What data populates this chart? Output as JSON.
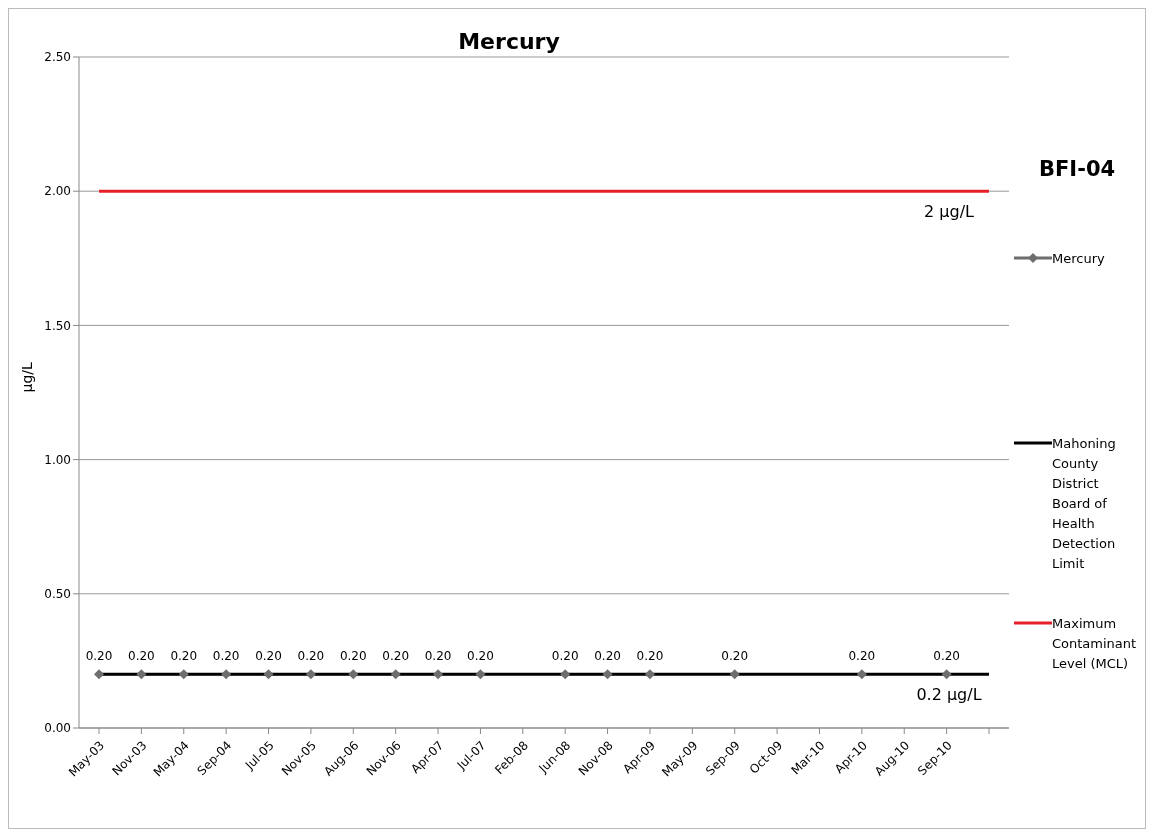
{
  "chart_data": {
    "type": "line",
    "title": "Mercury",
    "subtitle": "BFI-04",
    "ylabel": "µg/L",
    "categories": [
      "May-03",
      "Nov-03",
      "May-04",
      "Sep-04",
      "Jul-05",
      "Nov-05",
      "Aug-06",
      "Nov-06",
      "Apr-07",
      "Jul-07",
      "Feb-08",
      "Jun-08",
      "Nov-08",
      "Apr-09",
      "May-09",
      "Sep-09",
      "Oct-09",
      "Mar-10",
      "Apr-10",
      "Aug-10",
      "Sep-10",
      null
    ],
    "series": [
      {
        "name": "Mercury",
        "color": "#6e6e6e",
        "marker": "diamond",
        "values": [
          0.2,
          0.2,
          0.2,
          0.2,
          0.2,
          0.2,
          0.2,
          0.2,
          0.2,
          0.2,
          null,
          0.2,
          0.2,
          0.2,
          null,
          0.2,
          null,
          null,
          0.2,
          null,
          0.2,
          null
        ],
        "value_labels": [
          "0.20",
          "0.20",
          "0.20",
          "0.20",
          "0.20",
          "0.20",
          "0.20",
          "0.20",
          "0.20",
          "0.20",
          null,
          "0.20",
          "0.20",
          "0.20",
          null,
          "0.20",
          null,
          null,
          "0.20",
          null,
          "0.20",
          null
        ]
      },
      {
        "name": "Mahoning County District Board of Health Detection Limit",
        "color": "#000000",
        "marker": "none",
        "values": [
          0.2,
          0.2,
          0.2,
          0.2,
          0.2,
          0.2,
          0.2,
          0.2,
          0.2,
          0.2,
          0.2,
          0.2,
          0.2,
          0.2,
          0.2,
          0.2,
          0.2,
          0.2,
          0.2,
          0.2,
          0.2,
          0.2
        ]
      },
      {
        "name": "Maximum Contaminant Level (MCL)",
        "color": "#e8202a",
        "marker": "none",
        "values": [
          2,
          2,
          2,
          2,
          2,
          2,
          2,
          2,
          2,
          2,
          2,
          2,
          2,
          2,
          2,
          2,
          2,
          2,
          2,
          2,
          2,
          2
        ]
      }
    ],
    "annotations": [
      {
        "text": "2 µg/L",
        "y": 2
      },
      {
        "text": "0.2 µg/L",
        "y": 0.2
      }
    ],
    "ylim": [
      0,
      2.5
    ],
    "yticks": [
      {
        "value": 0,
        "label": "0.00"
      },
      {
        "value": 0.5,
        "label": "0.50"
      },
      {
        "value": 1,
        "label": "1.00"
      },
      {
        "value": 1.5,
        "label": "1.50"
      },
      {
        "value": 2,
        "label": "2.00"
      },
      {
        "value": 2.5,
        "label": "2.50"
      }
    ],
    "grid": "y",
    "legend": "right",
    "line_style": "solid"
  }
}
